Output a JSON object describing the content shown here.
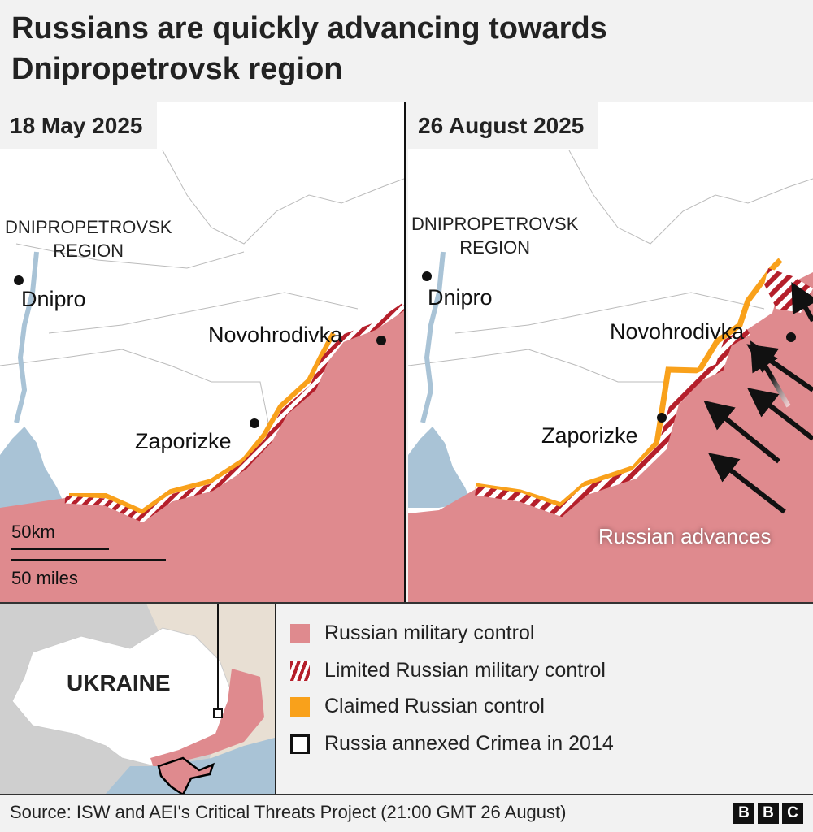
{
  "title": "Russians are quickly advancing towards Dnipropetrovsk region",
  "title_lines": [
    "Russians are quickly advancing towards",
    "Dnipropetrovsk region"
  ],
  "maps": [
    {
      "date": "18 May 2025",
      "region_label": [
        "DNIPROPETROVSK",
        "REGION"
      ],
      "cities": [
        "Dnipro",
        "Novohrodivka",
        "Zaporizke"
      ],
      "scale": {
        "km": "50km",
        "miles": "50 miles"
      }
    },
    {
      "date": "26 August 2025",
      "region_label": [
        "DNIPROPETROVSK",
        "REGION"
      ],
      "cities": [
        "Dnipro",
        "Novohrodivka",
        "Zaporizke"
      ],
      "annotation": "Russian advances"
    }
  ],
  "inset": {
    "label": "UKRAINE"
  },
  "legend": [
    {
      "label": "Russian military control",
      "color": "#df8a8e"
    },
    {
      "label": "Limited Russian military control",
      "color": "#b51f2b"
    },
    {
      "label": "Claimed Russian control",
      "color": "#f9a11b"
    },
    {
      "label": "Russia annexed Crimea in 2014",
      "color": "#000000"
    }
  ],
  "colors": {
    "russian": "#df8a8e",
    "limited": "#b51f2b",
    "claimed": "#f9a11b",
    "water": "#a9c3d6",
    "land": "#ffffff"
  },
  "footer": {
    "source": "Source: ISW and AEI's Critical Threats Project (21:00 GMT 26 August)",
    "logo": [
      "B",
      "B",
      "C"
    ]
  }
}
